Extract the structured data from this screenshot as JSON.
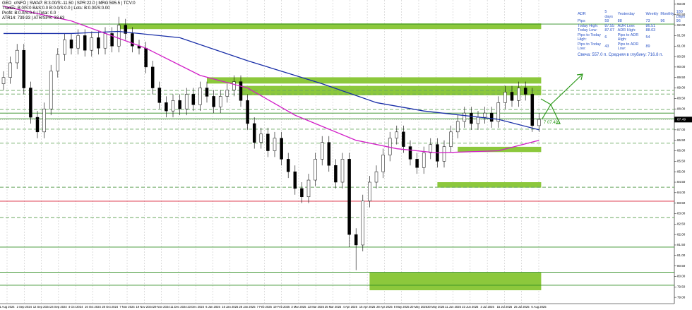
{
  "header_lines": [
    "GEO_c/NFO | SWAP: B:3.00/S:-11.50 | SPR:22.0 | MRG:595.5 | TCV:0",
    "Trades: B:0/S:0 B&S:0.0 B:0.0/S:0.0 | Lots: B:0.00/S:0.00",
    "Profit: B:0.0/S:0.0 | Total: 0.0",
    "ATR14: 739.93 | ATR/SPR: 33.63"
  ],
  "info": {
    "rows": [
      [
        "ADR",
        "5 days",
        "Yesterday",
        "Weekly",
        "Monthly",
        "180 Days"
      ],
      [
        "Pips",
        "59",
        "88",
        "73",
        "96",
        "96"
      ],
      [
        "Today High:",
        "87.55",
        "ADR Low:",
        "86.51",
        "",
        ""
      ],
      [
        "Today Low:",
        "87.07",
        "ADR High:",
        "88.03",
        "",
        ""
      ],
      [
        "Pips to Today High:",
        "6",
        "Pips to ADR High:",
        "54",
        "",
        ""
      ],
      [
        "Pips to Today Low:",
        "43",
        "Pips to ADR Low:",
        "89",
        "",
        ""
      ]
    ],
    "candle_note": "Свеча: 557.0 п. Средняя в глубину: 716.8 п."
  },
  "chart_data": {
    "type": "candlestick",
    "open": [
      89.2,
      89.5,
      90.2,
      90.8,
      89.0,
      87.6,
      86.9,
      88.0,
      89.8,
      90.6,
      91.3,
      90.9,
      91.5,
      90.8,
      91.4,
      90.9,
      91.6,
      91.0,
      92.0,
      91.6,
      91.0,
      90.9,
      90.0,
      89.0,
      88.3,
      87.9,
      88.4,
      88.0,
      88.7,
      88.2,
      89.0,
      88.6,
      88.1,
      88.6,
      88.9,
      89.3,
      88.4,
      87.3,
      86.4,
      86.8,
      86.0,
      86.6,
      85.6,
      85.0,
      84.2,
      83.8,
      84.6,
      85.6,
      86.4,
      85.3,
      84.5,
      85.6,
      82.0,
      81.5,
      83.6,
      84.5,
      85.0,
      85.8,
      86.6,
      86.9,
      86.2,
      85.6,
      85.2,
      85.9,
      86.3,
      85.5,
      86.2,
      86.9,
      87.4,
      87.8,
      87.3,
      87.6,
      87.8,
      87.4,
      88.3,
      88.8,
      88.4,
      89.0,
      88.7,
      87.2
    ],
    "high": [
      89.8,
      90.5,
      91.1,
      91.1,
      89.3,
      87.9,
      88.3,
      90.1,
      90.9,
      91.6,
      91.6,
      91.8,
      91.8,
      91.7,
      91.7,
      91.9,
      91.9,
      92.4,
      92.3,
      91.9,
      91.3,
      91.2,
      90.3,
      89.3,
      88.6,
      88.7,
      88.7,
      89.0,
      89.0,
      89.3,
      89.3,
      88.9,
      88.9,
      89.2,
      89.6,
      89.6,
      88.7,
      87.6,
      87.1,
      87.1,
      86.9,
      86.9,
      85.9,
      85.3,
      84.5,
      84.9,
      85.9,
      86.7,
      86.7,
      85.6,
      85.9,
      85.9,
      82.3,
      83.9,
      84.8,
      85.3,
      86.1,
      86.9,
      87.2,
      87.2,
      86.5,
      85.9,
      86.2,
      86.6,
      86.6,
      86.5,
      87.2,
      87.7,
      88.1,
      88.1,
      87.9,
      88.1,
      88.1,
      88.6,
      89.1,
      89.1,
      89.3,
      89.3,
      89.0,
      87.8
    ],
    "low": [
      88.9,
      89.2,
      89.9,
      88.7,
      87.3,
      86.6,
      86.6,
      87.7,
      89.5,
      90.3,
      90.6,
      90.6,
      90.5,
      90.5,
      90.6,
      90.6,
      90.7,
      90.7,
      91.3,
      90.7,
      90.6,
      89.7,
      88.7,
      88.0,
      87.6,
      87.6,
      87.7,
      87.7,
      87.9,
      87.9,
      88.3,
      87.8,
      87.8,
      88.3,
      88.6,
      88.1,
      87.0,
      86.1,
      86.1,
      85.7,
      85.7,
      85.3,
      84.7,
      83.9,
      83.5,
      83.5,
      84.3,
      85.3,
      85.0,
      84.2,
      84.2,
      81.4,
      80.3,
      81.2,
      83.3,
      84.2,
      84.7,
      85.5,
      86.3,
      85.9,
      85.3,
      84.9,
      84.9,
      85.6,
      85.2,
      85.2,
      85.9,
      86.6,
      87.1,
      87.0,
      87.0,
      87.3,
      87.1,
      87.1,
      88.0,
      88.1,
      88.1,
      88.4,
      86.9,
      86.9
    ],
    "close": [
      89.5,
      90.2,
      90.8,
      89.0,
      87.6,
      86.9,
      88.0,
      89.8,
      90.6,
      91.3,
      90.9,
      91.5,
      90.8,
      91.4,
      90.9,
      91.6,
      91.0,
      92.0,
      91.6,
      91.0,
      90.9,
      90.0,
      89.0,
      88.3,
      87.9,
      88.4,
      88.0,
      88.7,
      88.2,
      89.0,
      88.6,
      88.1,
      88.6,
      88.9,
      89.3,
      88.4,
      87.3,
      86.4,
      86.8,
      86.0,
      86.6,
      85.6,
      85.0,
      84.2,
      83.8,
      84.6,
      85.6,
      86.4,
      85.3,
      84.5,
      85.6,
      82.0,
      81.5,
      83.6,
      84.5,
      85.0,
      85.8,
      86.6,
      86.9,
      86.2,
      85.6,
      85.2,
      85.9,
      86.3,
      85.5,
      86.2,
      86.9,
      87.4,
      87.8,
      87.3,
      87.6,
      87.8,
      87.4,
      88.3,
      88.8,
      88.4,
      89.0,
      88.7,
      87.2,
      87.5
    ],
    "moving_averages": [
      {
        "color": "#1a2fa8",
        "x": [
          0,
          10,
          17,
          26,
          36,
          47,
          55,
          62,
          73,
          79
        ],
        "values": [
          91.6,
          91.6,
          91.7,
          91.4,
          90.3,
          89.2,
          88.3,
          87.9,
          87.5,
          87.0
        ]
      },
      {
        "color": "#d21fc8",
        "x": [
          0,
          10,
          21,
          29,
          36,
          43,
          52,
          58,
          64,
          73,
          79
        ],
        "values": [
          92.9,
          92.2,
          90.9,
          89.6,
          89.0,
          87.7,
          86.5,
          86.1,
          85.9,
          86.0,
          86.5
        ]
      }
    ],
    "zones": [
      {
        "x": 17,
        "high": 92.08,
        "low": 91.81
      },
      {
        "x": 30,
        "high": 89.51,
        "low": 89.21
      },
      {
        "x": 35,
        "high": 89.1,
        "low": 88.65
      },
      {
        "x": 67,
        "high": 86.19,
        "low": 85.94
      },
      {
        "x": 64,
        "high": 84.5,
        "low": 84.24
      },
      {
        "x": 54,
        "high": 80.18,
        "low": 79.34
      }
    ],
    "zone_color": "#8cc83c",
    "levels": [
      {
        "color": "#2e8b1f",
        "dash": false,
        "values": [
          92.05,
          87.8,
          87.53,
          81.4,
          80.2,
          79.58
        ]
      },
      {
        "color": "#6aa860",
        "dash": true,
        "values": [
          88.88,
          88.71,
          87.97,
          87.03,
          86.36,
          84.26,
          82.81
        ]
      },
      {
        "color": "#d8102a",
        "dash": false,
        "values": [
          83.59
        ]
      }
    ],
    "last_price": 87.49,
    "price_note": "7 07.49",
    "ylim": [
      78.7,
      93.2
    ],
    "yticks": [
      {
        "value": 79.0,
        "label": "79.00"
      },
      {
        "value": 79.5,
        "label": "79.50"
      },
      {
        "value": 80.0,
        "label": "80.00"
      },
      {
        "value": 80.5,
        "label": "80.50"
      },
      {
        "value": 81.0,
        "label": "81.00"
      },
      {
        "value": 81.5,
        "label": "81.50"
      },
      {
        "value": 82.0,
        "label": "82.00"
      },
      {
        "value": 82.5,
        "label": "82.50"
      },
      {
        "value": 83.0,
        "label": "83.00"
      },
      {
        "value": 83.5,
        "label": "83.50"
      },
      {
        "value": 84.0,
        "label": "84.00"
      },
      {
        "value": 84.5,
        "label": "84.50"
      },
      {
        "value": 85.0,
        "label": "85.00"
      },
      {
        "value": 85.5,
        "label": "85.50"
      },
      {
        "value": 86.0,
        "label": "86.00"
      },
      {
        "value": 86.5,
        "label": "86.50"
      },
      {
        "value": 87.0,
        "label": "87.00"
      },
      {
        "value": 87.5,
        "label": "87.50"
      },
      {
        "value": 88.0,
        "label": "88.00"
      },
      {
        "value": 88.5,
        "label": "88.50"
      },
      {
        "value": 89.0,
        "label": "89.00"
      },
      {
        "value": 89.5,
        "label": "89.50"
      },
      {
        "value": 90.0,
        "label": "90.00"
      },
      {
        "value": 90.5,
        "label": "90.50"
      },
      {
        "value": 91.0,
        "label": "91.00"
      },
      {
        "value": 91.5,
        "label": "91.50"
      },
      {
        "value": 92.0,
        "label": "92.00"
      },
      {
        "value": 92.5,
        "label": "92.50"
      },
      {
        "value": 93.0,
        "label": "93.00"
      }
    ],
    "date_labels": [
      "1 Aug 2024",
      "2 Sep 2024",
      "12 Sep 2024",
      "24 Sep 2024",
      "4 Oct 2024",
      "16 Oct 2024",
      "28 Oct 2024",
      "7 Nov 2024",
      "19 Nov 2024",
      "29 Nov 2024",
      "11 Dec 2024",
      "23 Dec 2024",
      "6 Jan 2025",
      "16 Jan 2025",
      "28 Jan 2025",
      "7 Feb 2025",
      "19 Feb 2025",
      "3 Mar 2025",
      "13 Mar 2025",
      "25 Mar 2025",
      "4 Apr 2025",
      "16 Apr 2025",
      "28 Apr 2025",
      "8 May 2025",
      "20 May 2025",
      "30 May 2025",
      "11 Jun 2025",
      "23 Jun 2025",
      "3 Jul 2025",
      "15 Jul 2025",
      "25 Jul 2025",
      "6 Aug 2025"
    ],
    "grid": true
  }
}
